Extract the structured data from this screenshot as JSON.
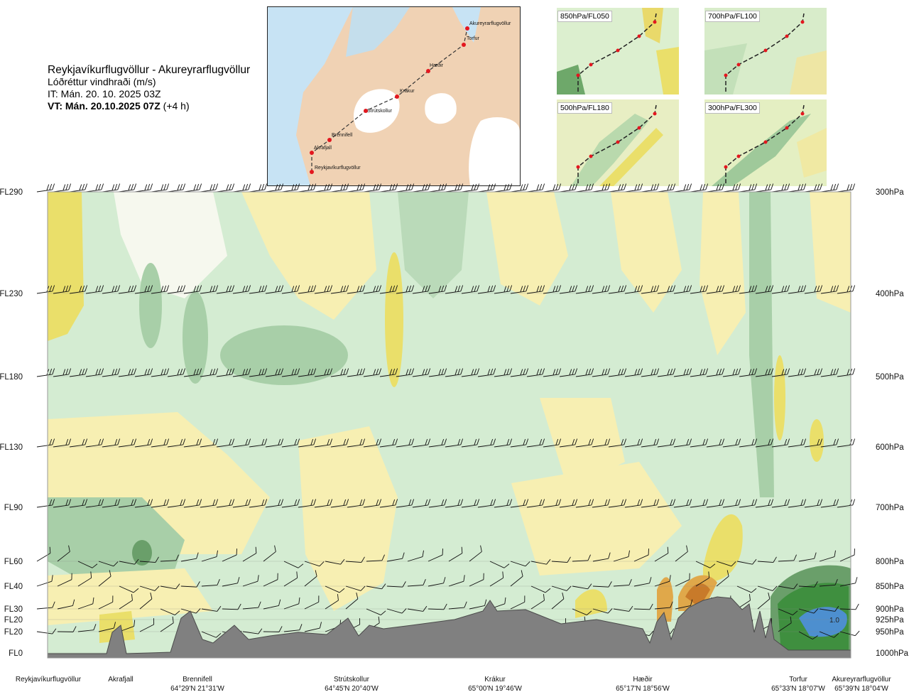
{
  "header": {
    "route": "Reykjavíkurflugvöllur - Akureyrarflugvöllur",
    "subtitle": "Lóðréttur vindhraði (m/s)",
    "issued": "IT: Mán. 20. 10. 2025 03Z",
    "valid_bold": "VT: Mán. 20.10.2025 07Z",
    "valid_offset": " (+4 h)"
  },
  "map": {
    "waypoints": [
      "Akureyrarflugvöllur",
      "Torfur",
      "Hæðir",
      "Krákur",
      "Strútskollur",
      "Brennifell",
      "Akrafjall",
      "Reykjavíkurflugvöllur"
    ]
  },
  "mini_maps": [
    {
      "label": "850hPa/FL050"
    },
    {
      "label": "700hPa/FL100"
    },
    {
      "label": "500hPa/FL180"
    },
    {
      "label": "300hPa/FL300"
    }
  ],
  "chart_data": {
    "type": "heatmap",
    "x_stations": [
      {
        "name": "Reykjavíkurflugvöllur",
        "coord": ""
      },
      {
        "name": "Akrafjall",
        "coord": ""
      },
      {
        "name": "Brennifell",
        "coord": "64°29'N 21°31'W"
      },
      {
        "name": "Strútskollur",
        "coord": "64°45'N 20°40'W"
      },
      {
        "name": "Krákur",
        "coord": "65°00'N 19°46'W"
      },
      {
        "name": "Hæðir",
        "coord": "65°17'N 18°56'W"
      },
      {
        "name": "Torfur",
        "coord": "65°33'N 18°07'W"
      },
      {
        "name": "Akureyrarflugvöllur",
        "coord": "65°39'N 18°04'W"
      }
    ],
    "y_left_labels": [
      "FL290",
      "FL230",
      "FL180",
      "FL130",
      "FL90",
      "FL60",
      "FL40",
      "FL30",
      "FL20",
      "FL20",
      "FL0"
    ],
    "y_right_labels": [
      "300hPa",
      "400hPa",
      "500hPa",
      "600hPa",
      "700hPa",
      "800hPa",
      "850hPa",
      "900hPa",
      "925hPa",
      "950hPa",
      "1000hPa"
    ],
    "annotation": "1.0",
    "colors": {
      "strong_down": "#6a9f6a",
      "down": "#a8cfa8",
      "weak_down": "#d4ecd2",
      "neutral": "#f6f8ee",
      "weak_up": "#f7efb2",
      "up": "#eadf6a",
      "strong_up": "#e0a84a",
      "stronger_up": "#c87a2a",
      "max_down": "#3f8f3f",
      "core": "#4d8fcf",
      "terrain": "#808080"
    }
  }
}
